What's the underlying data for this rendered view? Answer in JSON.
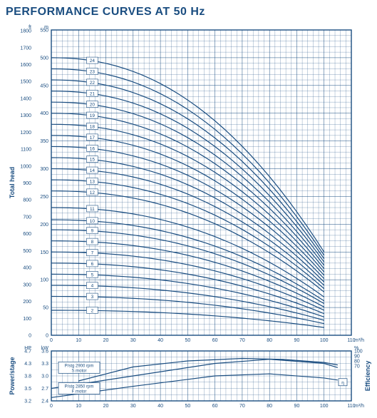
{
  "title": "PERFORMANCE CURVES AT 50 Hz",
  "colors": {
    "primary": "#1a4d80",
    "background": "#ffffff",
    "grid": "#1a4d80"
  },
  "main_chart": {
    "type": "line",
    "ylabel": "Total head",
    "x_axis": {
      "min": 0,
      "max": 110,
      "tick_step": 10,
      "unit": "m³/h"
    },
    "y_axis_m": {
      "min": 0,
      "max": 550,
      "tick_step": 50,
      "unit": "m"
    },
    "y_axis_ft": {
      "min": 0,
      "max": 1800,
      "tick_step": 100,
      "unit": "ft"
    },
    "curve_xmax": 100,
    "curves": [
      {
        "stage": "24",
        "h0": 500,
        "h_xmax": 150
      },
      {
        "stage": "23",
        "h0": 480,
        "h_xmax": 144
      },
      {
        "stage": "22",
        "h0": 460,
        "h_xmax": 138
      },
      {
        "stage": "21",
        "h0": 440,
        "h_xmax": 132
      },
      {
        "stage": "20",
        "h0": 420,
        "h_xmax": 126
      },
      {
        "stage": "19",
        "h0": 400,
        "h_xmax": 120
      },
      {
        "stage": "18",
        "h0": 380,
        "h_xmax": 114
      },
      {
        "stage": "17",
        "h0": 360,
        "h_xmax": 108
      },
      {
        "stage": "16",
        "h0": 340,
        "h_xmax": 102
      },
      {
        "stage": "15",
        "h0": 320,
        "h_xmax": 96
      },
      {
        "stage": "14",
        "h0": 300,
        "h_xmax": 90
      },
      {
        "stage": "13",
        "h0": 280,
        "h_xmax": 84
      },
      {
        "stage": "12",
        "h0": 260,
        "h_xmax": 78
      },
      {
        "stage": "11",
        "h0": 230,
        "h_xmax": 69
      },
      {
        "stage": "10",
        "h0": 208,
        "h_xmax": 62
      },
      {
        "stage": "9",
        "h0": 190,
        "h_xmax": 57
      },
      {
        "stage": "8",
        "h0": 170,
        "h_xmax": 51
      },
      {
        "stage": "7",
        "h0": 150,
        "h_xmax": 45
      },
      {
        "stage": "6",
        "h0": 130,
        "h_xmax": 39
      },
      {
        "stage": "5",
        "h0": 110,
        "h_xmax": 33
      },
      {
        "stage": "4",
        "h0": 90,
        "h_xmax": 27
      },
      {
        "stage": "3",
        "h0": 70,
        "h_xmax": 21
      },
      {
        "stage": "2",
        "h0": 45,
        "h_xmax": 14
      }
    ],
    "line_width": 1.2
  },
  "power_chart": {
    "type": "line",
    "ylabel_left": "Power/stage",
    "ylabel_right": "Efficiency",
    "x_axis": {
      "min": 0,
      "max": 110,
      "tick_step": 10,
      "unit": "m³/h"
    },
    "y_kw": {
      "min": 2.4,
      "max": 3.6,
      "tick_step": 0.3,
      "unit": "kW"
    },
    "y_hp": {
      "min": 3.2,
      "max": 4.7,
      "ticks": [
        3.2,
        3.5,
        3.8,
        4.3,
        4.7
      ],
      "unit": "HP"
    },
    "y_eff": {
      "min": 0,
      "max": 100,
      "ticks": [
        70,
        80,
        90,
        100
      ],
      "unit": "%"
    },
    "eff_label": "η",
    "curves": [
      {
        "id": "power-2900",
        "points": [
          [
            0,
            2.7
          ],
          [
            30,
            3.0
          ],
          [
            60,
            3.3
          ],
          [
            80,
            3.4
          ],
          [
            100,
            3.3
          ],
          [
            105,
            3.2
          ]
        ]
      },
      {
        "id": "power-2850",
        "points": [
          [
            0,
            2.48
          ],
          [
            30,
            2.75
          ],
          [
            60,
            3.0
          ],
          [
            80,
            3.05
          ],
          [
            100,
            2.95
          ],
          [
            105,
            2.9
          ]
        ]
      },
      {
        "id": "efficiency",
        "points": [
          [
            10,
            40
          ],
          [
            30,
            68
          ],
          [
            50,
            80
          ],
          [
            70,
            85
          ],
          [
            85,
            83
          ],
          [
            100,
            77
          ],
          [
            105,
            72
          ]
        ],
        "is_eff": true
      }
    ],
    "annotations": [
      {
        "label1": "P/stg 2900 rpm",
        "label2": "S motor",
        "at_y_kw": 3.2
      },
      {
        "label1": "P/stg 2850 rpm",
        "label2": "F motor",
        "at_y_kw": 2.7
      }
    ],
    "line_width": 1.2
  }
}
